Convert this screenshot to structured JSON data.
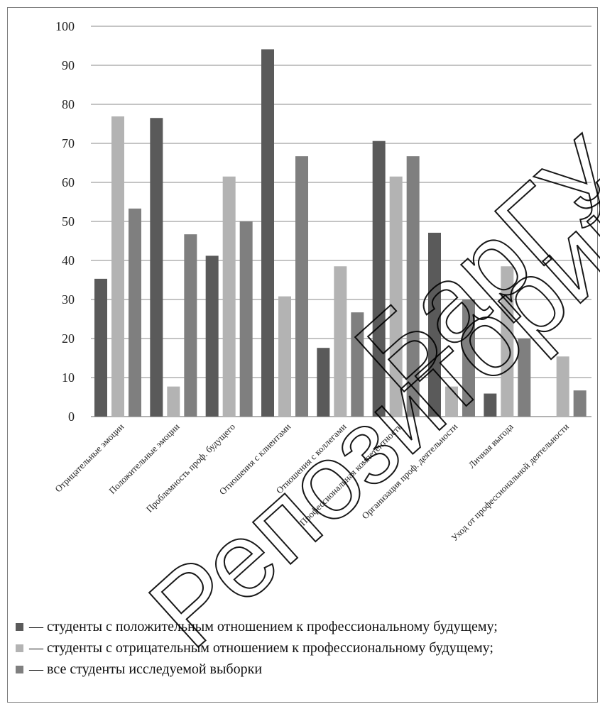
{
  "chart_data": {
    "type": "bar",
    "categories": [
      "Отрицательные эмоции",
      "Положительные эмоции",
      "Проблемность проф. будущего",
      "Отношения с клиентами",
      "Отношения с коллегами",
      "Профессиональная компетентность",
      "Организация проф. деятельности",
      "Личная выгода",
      "Уход от профессиональной деятельности"
    ],
    "series": [
      {
        "name": "— студенты с положительным отношением к профессиональному будущему;",
        "color": "#5a5a5a",
        "values": [
          35.3,
          76.5,
          41.2,
          94.1,
          17.6,
          70.6,
          47.1,
          5.9,
          0
        ]
      },
      {
        "name": "— студенты с отрицательным отношением к профессиональному будущему;",
        "color": "#b3b3b3",
        "values": [
          76.9,
          7.7,
          61.5,
          30.8,
          38.5,
          61.5,
          7.7,
          38.5,
          15.4
        ]
      },
      {
        "name": "— все студенты исследуемой выборки",
        "color": "#7f7f7f",
        "values": [
          53.3,
          46.7,
          50.0,
          66.7,
          26.7,
          66.7,
          30.0,
          20.0,
          6.7
        ]
      }
    ],
    "yticks": [
      "0",
      "10",
      "20",
      "30",
      "40",
      "50",
      "60",
      "70",
      "80",
      "90",
      "100"
    ],
    "ylim": [
      0,
      100
    ],
    "grid": true,
    "legend_position": "bottom"
  },
  "watermark": {
    "line1": "Репозиторий",
    "line2": "БарГУ"
  }
}
